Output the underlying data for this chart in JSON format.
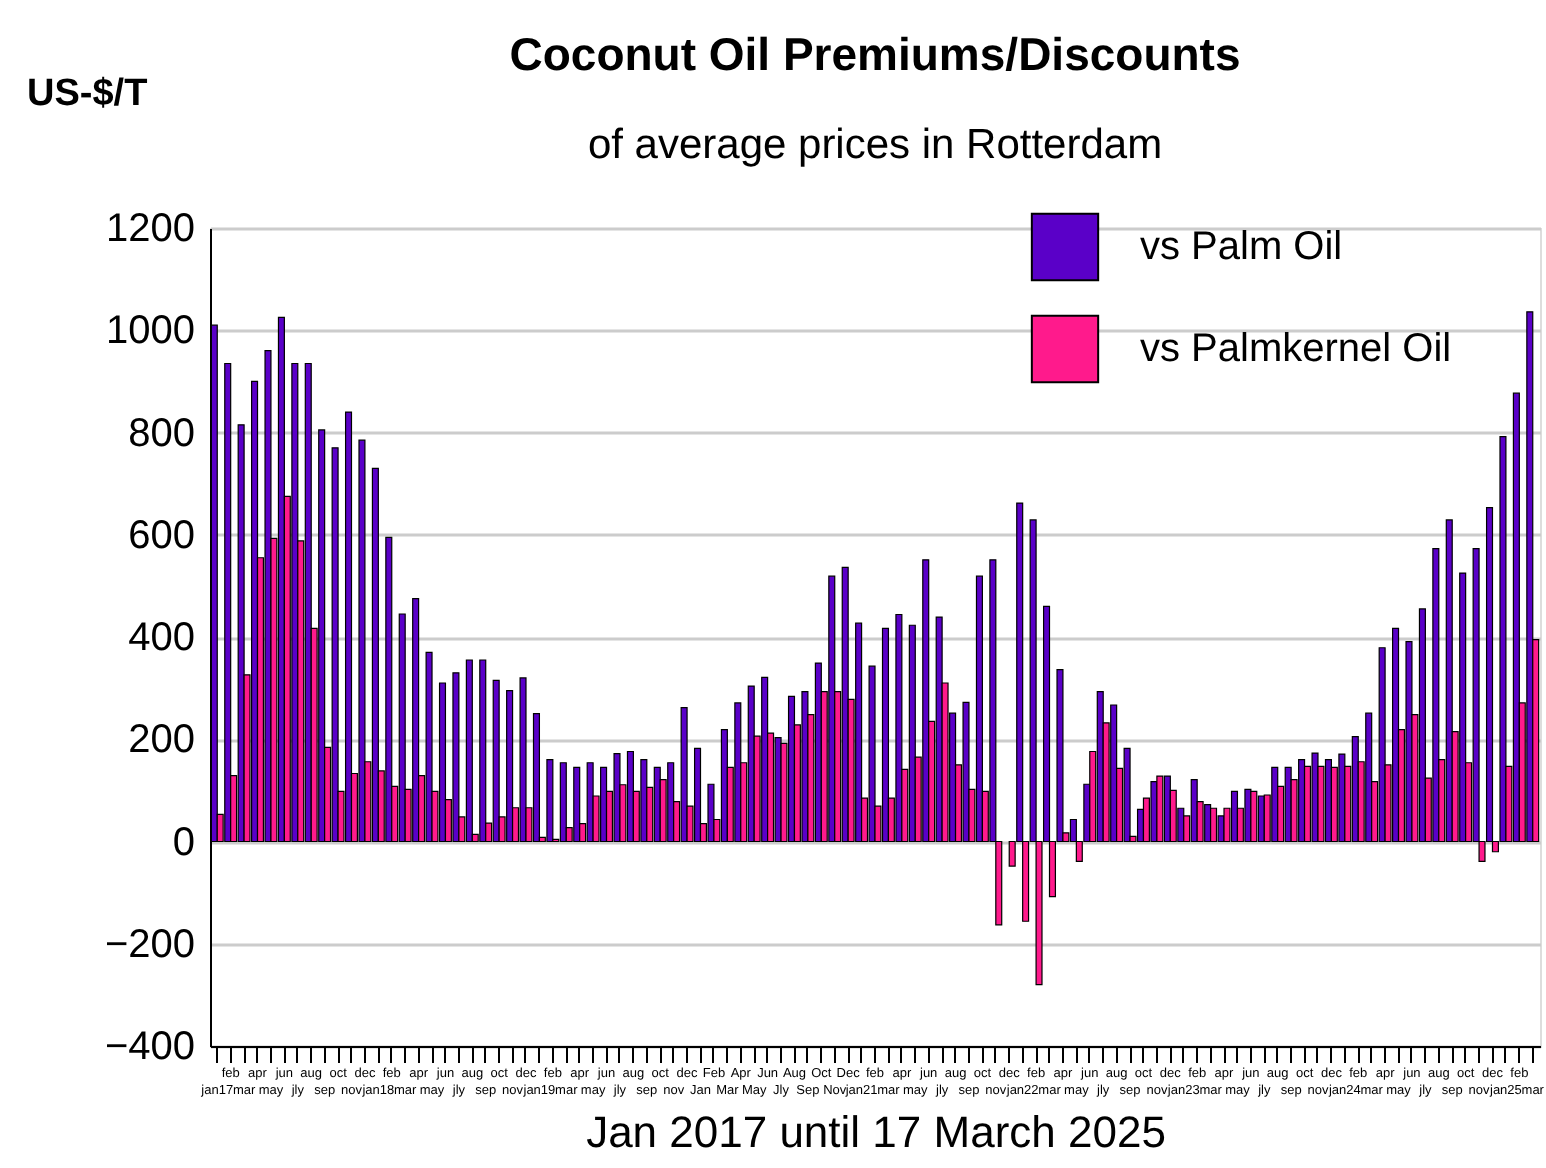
{
  "chart_data": {
    "type": "bar",
    "title": "Coconut Oil Premiums/Discounts",
    "subtitle": "of average prices in Rotterdam",
    "xlabel": "Jan 2017 until 17 March 2025",
    "ylabel": "US-$/T",
    "categories": [
      "jan17",
      "feb",
      "mar",
      "apr",
      "may",
      "jun",
      "jly",
      "aug",
      "sep",
      "oct",
      "nov",
      "dec",
      "jan18",
      "feb",
      "mar",
      "apr",
      "may",
      "jun",
      "jly",
      "aug",
      "sep",
      "oct",
      "nov",
      "dec",
      "jan19",
      "feb",
      "mar",
      "apr",
      "may",
      "jun",
      "jly",
      "aug",
      "sep",
      "oct",
      "nov",
      "dec",
      "Jan",
      "Feb",
      "Mar",
      "Apr",
      "May",
      "Jun",
      "Jly",
      "Aug",
      "Sep",
      "Oct",
      "Nov",
      "Dec",
      "jan21",
      "feb",
      "mar",
      "apr",
      "may",
      "jun",
      "jly",
      "aug",
      "sep",
      "oct",
      "nov",
      "dec",
      "jan22",
      "feb",
      "mar",
      "apr",
      "may",
      "jun",
      "jly",
      "aug",
      "sep",
      "oct",
      "nov",
      "dec",
      "jan23",
      "feb",
      "mar",
      "apr",
      "may",
      "jun",
      "jly",
      "aug",
      "sep",
      "oct",
      "nov",
      "dec",
      "jan24",
      "feb",
      "mar",
      "apr",
      "may",
      "jun",
      "jly",
      "aug",
      "sep",
      "oct",
      "nov",
      "dec",
      "jan25",
      "feb",
      "mar"
    ],
    "series": [
      {
        "name": "vs Palm Oil",
        "color": "#5a00c8",
        "values": [
          1010,
          935,
          815,
          900,
          960,
          1025,
          935,
          935,
          805,
          770,
          840,
          785,
          730,
          595,
          445,
          475,
          370,
          310,
          330,
          355,
          355,
          315,
          295,
          320,
          250,
          160,
          154,
          145,
          154,
          145,
          172,
          176,
          160,
          145,
          154,
          262,
          182,
          112,
          219,
          271,
          304,
          321,
          203,
          284,
          293,
          349,
          519,
          536,
          427,
          343,
          417,
          444,
          423,
          551,
          439,
          251,
          272,
          519,
          551,
          null,
          662,
          629,
          460,
          336,
          43,
          112,
          293,
          267,
          182,
          63,
          117,
          128,
          65,
          121,
          72,
          50,
          98,
          102,
          89,
          145,
          145,
          160,
          173,
          160,
          171,
          205,
          251,
          379,
          417,
          391,
          455,
          573,
          629,
          525,
          573,
          653,
          792,
          877,
          1036
        ]
      },
      {
        "name": "vs Palmkernel Oil",
        "color": "#ff1a8c",
        "values": [
          53,
          129,
          326,
          555,
          593,
          675,
          588,
          417,
          184,
          98,
          133,
          156,
          138,
          108,
          102,
          129,
          98,
          82,
          48,
          14,
          36,
          48,
          66,
          66,
          8,
          4,
          27,
          35,
          89,
          98,
          111,
          98,
          106,
          121,
          78,
          69,
          35,
          43,
          145,
          154,
          206,
          212,
          192,
          228,
          248,
          293,
          293,
          278,
          85,
          69,
          85,
          141,
          165,
          235,
          310,
          150,
          102,
          98,
          -163,
          -48,
          -156,
          -280,
          -108,
          17,
          -39,
          176,
          232,
          143,
          10,
          85,
          128,
          100,
          50,
          78,
          65,
          65,
          65,
          98,
          91,
          108,
          121,
          147,
          147,
          145,
          147,
          156,
          117,
          150,
          219,
          248,
          124,
          160,
          215,
          154,
          -39,
          -20,
          147,
          271,
          395
        ]
      }
    ],
    "ylim": [
      -400,
      1200
    ],
    "yticks": [
      -400,
      -200,
      0,
      200,
      400,
      600,
      800,
      1000,
      1200
    ],
    "grid": "y",
    "legend": "top right"
  }
}
